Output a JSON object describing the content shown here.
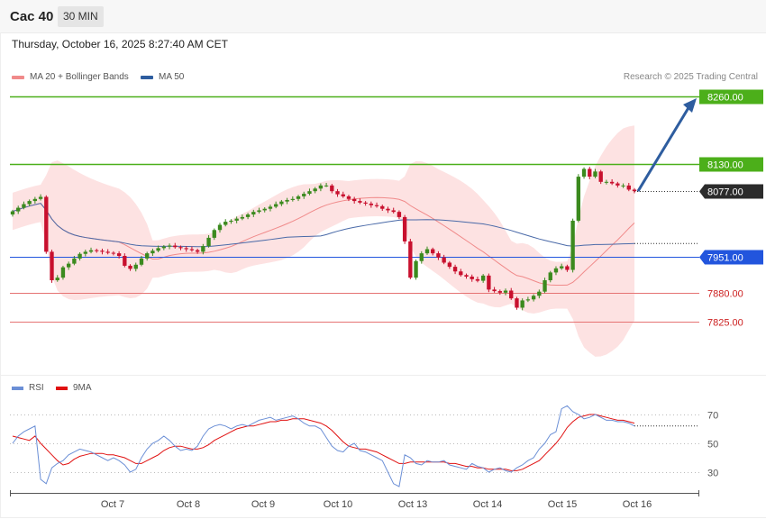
{
  "header": {
    "symbol": "Cac 40",
    "timeframe": "30 MIN",
    "datetime": "Thursday, October 16, 2025 8:27:40 AM CET",
    "copyright": "Research © 2025 Trading Central"
  },
  "legend": {
    "ma20": "MA 20 + Bollinger Bands",
    "ma50": "MA 50",
    "rsi": "RSI",
    "rsi_ma": "9MA"
  },
  "colors": {
    "up": "#3b8a1e",
    "down": "#c8102e",
    "band": "#fde2e2",
    "ma20": "#f08a8a",
    "ma50": "#4a6aa8",
    "resistance": "#4caf1a",
    "support_blue": "#2255dd",
    "support_red": "#e57373",
    "arrow": "#2e5d9f",
    "rsi": "#6b8fd6",
    "rsi_ma": "#e01010"
  },
  "chart_data": [
    {
      "type": "candlestick",
      "title": "Cac 40",
      "timeframe": "30 MIN",
      "ylim": [
        7800,
        8290
      ],
      "x_labels": [
        "Oct 7",
        "Oct 8",
        "Oct 9",
        "Oct 10",
        "Oct 13",
        "Oct 14",
        "Oct 15",
        "Oct 16"
      ],
      "levels": [
        {
          "value": 8260,
          "label": "8260.00",
          "kind": "resistance"
        },
        {
          "value": 8130,
          "label": "8130.00",
          "kind": "resistance"
        },
        {
          "value": 8077,
          "label": "8077.00",
          "kind": "last"
        },
        {
          "value": 7951,
          "label": "7951.00",
          "kind": "pivot"
        },
        {
          "value": 7880,
          "label": "7880.00",
          "kind": "support"
        },
        {
          "value": 7825,
          "label": "7825.00",
          "kind": "support"
        }
      ],
      "projection": {
        "from": 8077,
        "to": 8260
      },
      "close": [
        8038,
        8045,
        8052,
        8058,
        8062,
        8066,
        7960,
        7905,
        7910,
        7930,
        7937,
        7947,
        7956,
        7960,
        7963,
        7962,
        7960,
        7958,
        7957,
        7952,
        7933,
        7927,
        7935,
        7947,
        7957,
        7962,
        7967,
        7970,
        7972,
        7969,
        7967,
        7965,
        7963,
        7960,
        7971,
        7987,
        8002,
        8012,
        8018,
        8020,
        8024,
        8027,
        8032,
        8037,
        8040,
        8043,
        8047,
        8052,
        8057,
        8060,
        8062,
        8067,
        8072,
        8077,
        8082,
        8088,
        8088,
        8077,
        8071,
        8067,
        8062,
        8058,
        8055,
        8053,
        8050,
        8048,
        8043,
        8040,
        8037,
        8027,
        7980,
        7910,
        7942,
        7957,
        7965,
        7957,
        7949,
        7939,
        7931,
        7922,
        7915,
        7912,
        7907,
        7904,
        7914,
        7887,
        7884,
        7881,
        7885,
        7870,
        7852,
        7866,
        7868,
        7875,
        7883,
        7905,
        7920,
        7928,
        7932,
        7925,
        8020,
        8105,
        8120,
        8105,
        8115,
        8095,
        8095,
        8092,
        8088,
        8088,
        8080,
        8077
      ],
      "rsi": {
        "ylim": [
          15,
          85
        ],
        "ticks": [
          70,
          50,
          30
        ],
        "rsi_values": [
          50,
          55,
          58,
          60,
          62,
          25,
          22,
          33,
          36,
          38,
          42,
          44,
          46,
          45,
          44,
          42,
          40,
          38,
          40,
          38,
          35,
          30,
          32,
          40,
          46,
          50,
          52,
          55,
          52,
          48,
          45,
          46,
          45,
          48,
          55,
          60,
          62,
          63,
          62,
          60,
          62,
          63,
          62,
          64,
          66,
          67,
          68,
          66,
          67,
          68,
          69,
          67,
          64,
          62,
          62,
          60,
          54,
          48,
          45,
          44,
          48,
          50,
          45,
          44,
          42,
          40,
          38,
          30,
          22,
          20,
          42,
          40,
          36,
          35,
          38,
          37,
          37,
          38,
          35,
          34,
          33,
          32,
          36,
          34,
          33,
          30,
          32,
          33,
          31,
          30,
          33,
          35,
          38,
          40,
          46,
          50,
          56,
          58,
          74,
          76,
          72,
          70,
          67,
          68,
          70,
          68,
          66,
          66,
          65,
          65,
          64,
          62
        ],
        "ma_values": [
          55,
          54,
          53,
          52,
          55,
          50,
          46,
          42,
          38,
          35,
          36,
          39,
          41,
          42,
          43,
          43,
          43,
          42,
          42,
          41,
          40,
          38,
          36,
          36,
          38,
          40,
          42,
          45,
          47,
          48,
          48,
          47,
          46,
          46,
          47,
          49,
          52,
          54,
          56,
          58,
          60,
          61,
          62,
          62,
          63,
          64,
          65,
          65,
          66,
          66,
          67,
          67,
          67,
          66,
          65,
          64,
          62,
          59,
          55,
          51,
          48,
          47,
          46,
          46,
          45,
          44,
          42,
          40,
          38,
          36,
          36,
          37,
          37,
          37,
          37,
          37,
          37,
          37,
          36,
          36,
          35,
          34,
          34,
          33,
          33,
          32,
          32,
          32,
          32,
          31,
          31,
          32,
          34,
          36,
          38,
          42,
          46,
          50,
          55,
          61,
          65,
          68,
          69,
          70,
          70,
          69,
          68,
          67,
          66,
          66,
          65,
          64
        ]
      }
    }
  ]
}
